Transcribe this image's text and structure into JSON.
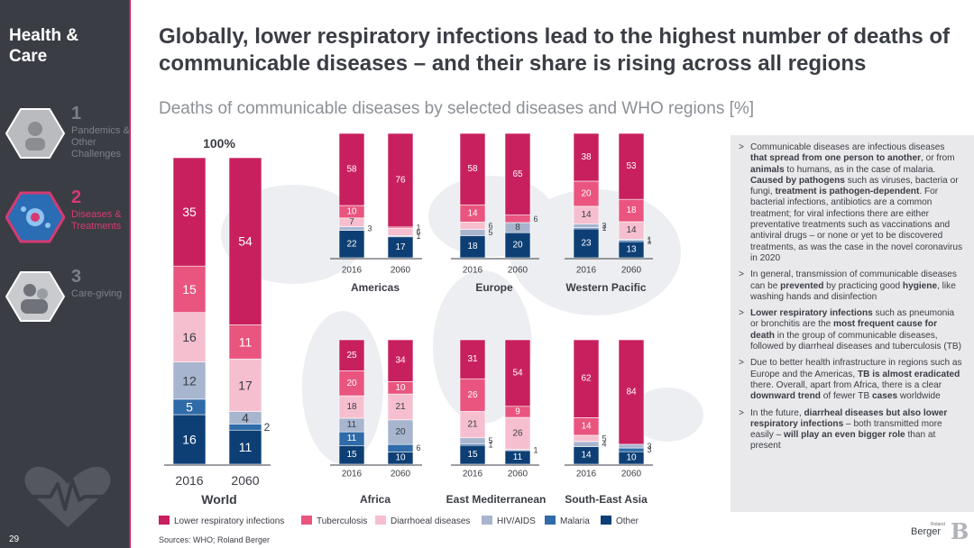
{
  "sidebar": {
    "title": "Health & Care",
    "items": [
      {
        "num": "1",
        "label": "Pandemics & Other Challenges",
        "active": false
      },
      {
        "num": "2",
        "label": "Diseases & Treatments",
        "active": true
      },
      {
        "num": "3",
        "label": "Care-giving",
        "active": false
      }
    ],
    "page_number": "29"
  },
  "header": {
    "title": "Globally, lower respiratory infections lead to the highest number of deaths of communicable diseases – and their share is rising across all regions",
    "subtitle": "Deaths of communicable diseases by selected diseases and WHO regions [%]"
  },
  "colors": {
    "Lower respiratory infections": "#c8205f",
    "Tuberculosis": "#e9557f",
    "Diarrhoeal diseases": "#f6bfd0",
    "HIV/AIDS": "#a7b5cf",
    "Malaria": "#2e6ba8",
    "Other": "#0d3f75"
  },
  "chart_data": {
    "type": "stacked_bar",
    "title": "Deaths of communicable diseases by selected diseases and WHO regions [%]",
    "categories": [
      "Lower respiratory infections",
      "Tuberculosis",
      "Diarrhoeal diseases",
      "HIV/AIDS",
      "Malaria",
      "Other"
    ],
    "world_total_label": "100%",
    "regions": [
      {
        "name": "World",
        "years": [
          "2016",
          "2060"
        ],
        "values": {
          "2016": {
            "Lower respiratory infections": 35,
            "Tuberculosis": 15,
            "Diarrhoeal diseases": 16,
            "HIV/AIDS": 12,
            "Malaria": 5,
            "Other": 16
          },
          "2060": {
            "Lower respiratory infections": 54,
            "Tuberculosis": 11,
            "Diarrhoeal diseases": 17,
            "HIV/AIDS": 4,
            "Malaria": 2,
            "Other": 11
          }
        }
      },
      {
        "name": "Americas",
        "years": [
          "2016",
          "2060"
        ],
        "values": {
          "2016": {
            "Lower respiratory infections": 58,
            "Tuberculosis": 10,
            "Diarrhoeal diseases": 7,
            "HIV/AIDS": 3,
            "Malaria": 0,
            "Other": 22
          },
          "2060": {
            "Lower respiratory infections": 76,
            "Tuberculosis": 1,
            "Diarrhoeal diseases": 6,
            "HIV/AIDS": 1,
            "Malaria": 0,
            "Other": 17
          }
        }
      },
      {
        "name": "Europe",
        "years": [
          "2016",
          "2060"
        ],
        "values": {
          "2016": {
            "Lower respiratory infections": 58,
            "Tuberculosis": 14,
            "Diarrhoeal diseases": 6,
            "HIV/AIDS": 5,
            "Malaria": 0,
            "Other": 18
          },
          "2060": {
            "Lower respiratory infections": 65,
            "Tuberculosis": 6,
            "Diarrhoeal diseases": 0,
            "HIV/AIDS": 8,
            "Malaria": 0,
            "Other": 20
          }
        }
      },
      {
        "name": "Western Pacific",
        "years": [
          "2016",
          "2060"
        ],
        "values": {
          "2016": {
            "Lower respiratory infections": 38,
            "Tuberculosis": 20,
            "Diarrhoeal diseases": 14,
            "HIV/AIDS": 3,
            "Malaria": 1,
            "Other": 23
          },
          "2060": {
            "Lower respiratory infections": 53,
            "Tuberculosis": 18,
            "Diarrhoeal diseases": 14,
            "HIV/AIDS": 1,
            "Malaria": 1,
            "Other": 13
          }
        }
      },
      {
        "name": "Africa",
        "years": [
          "2016",
          "2060"
        ],
        "values": {
          "2016": {
            "Lower respiratory infections": 25,
            "Tuberculosis": 20,
            "Diarrhoeal diseases": 18,
            "HIV/AIDS": 11,
            "Malaria": 11,
            "Other": 15
          },
          "2060": {
            "Lower respiratory infections": 34,
            "Tuberculosis": 10,
            "Diarrhoeal diseases": 21,
            "HIV/AIDS": 20,
            "Malaria": 6,
            "Other": 10
          }
        }
      },
      {
        "name": "East Mediterranean",
        "years": [
          "2016",
          "2060"
        ],
        "values": {
          "2016": {
            "Lower respiratory infections": 31,
            "Tuberculosis": 26,
            "Diarrhoeal diseases": 21,
            "HIV/AIDS": 5,
            "Malaria": 1,
            "Other": 15
          },
          "2060": {
            "Lower respiratory infections": 54,
            "Tuberculosis": 9,
            "Diarrhoeal diseases": 26,
            "HIV/AIDS": 1,
            "Malaria": 0,
            "Other": 11
          }
        }
      },
      {
        "name": "South-East Asia",
        "years": [
          "2016",
          "2060"
        ],
        "values": {
          "2016": {
            "Lower respiratory infections": 62,
            "Tuberculosis": 14,
            "Diarrhoeal diseases": 5,
            "HIV/AIDS": 4,
            "Malaria": 0,
            "Other": 14
          },
          "2060": {
            "Lower respiratory infections": 84,
            "Tuberculosis": 0,
            "Diarrhoeal diseases": 0,
            "HIV/AIDS": 3,
            "Malaria": 3,
            "Other": 10
          }
        }
      }
    ]
  },
  "legend": [
    {
      "label": "Lower respiratory infections",
      "color": "#c8205f"
    },
    {
      "label": "Tuberculosis",
      "color": "#e9557f"
    },
    {
      "label": "Diarrhoeal diseases",
      "color": "#f6bfd0"
    },
    {
      "label": "HIV/AIDS",
      "color": "#a7b5cf"
    },
    {
      "label": "Malaria",
      "color": "#2e6ba8"
    },
    {
      "label": "Other",
      "color": "#0d3f75"
    }
  ],
  "source": "Sources: WHO; Roland Berger",
  "bullets": [
    "Communicable diseases are infectious diseases that spread from one person to another, or from animals to humans, as in the case of malaria. Caused by pathogens such as viruses, bacteria or fungi, treatment is pathogen-dependent. For bacterial infections, antibiotics are a common treatment; for viral infections there are either preventative treatments such as vaccinations and antiviral drugs – or none or yet to be discovered treatments, as was the case in the novel coronavirus in 2020",
    "In general, transmission of communicable diseases can be prevented by practicing good hygiene, like washing hands and disinfection",
    "Lower respiratory infections such as pneumonia or bronchitis are the most frequent cause for death in the group of communicable diseases, followed by diarrheal diseases and tuberculosis (TB)",
    "Due to better health infrastructure in regions such as Europe and the Americas, TB is almost eradicated there. Overall, apart from Africa, there is a clear downward trend of fewer TB cases worldwide",
    "In the future, diarrheal diseases but also lower respiratory infections – both transmitted more easily – will play an even bigger role than at present"
  ],
  "bullet_marker": ">",
  "logo": {
    "small": "Roland",
    "text": "Berger",
    "mark": "B"
  }
}
